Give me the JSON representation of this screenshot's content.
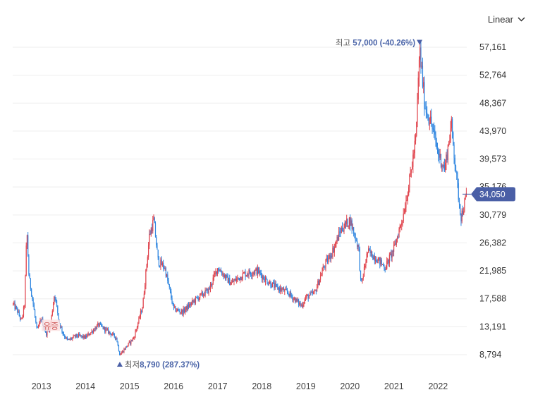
{
  "scale_toggle": {
    "label": "Linear",
    "icon": "chevron-down-icon"
  },
  "colors": {
    "up": "#e0444d",
    "down": "#2f86e0",
    "accent": "#4a5fa6",
    "grid": "#eeeeee"
  },
  "chart_data": {
    "type": "candlestick",
    "title": "",
    "xlabel": "",
    "ylabel": "",
    "ylim": [
      8794,
      57161
    ],
    "y_ticks": [
      "57,161",
      "52,764",
      "48,367",
      "43,970",
      "39,573",
      "35,176",
      "30,779",
      "26,382",
      "21,985",
      "17,588",
      "13,191",
      "8,794"
    ],
    "y_tick_values": [
      57161,
      52764,
      48367,
      43970,
      39573,
      35176,
      30779,
      26382,
      21985,
      17588,
      13191,
      8794
    ],
    "x_ticks": [
      "2013",
      "2014",
      "2015",
      "2016",
      "2017",
      "2018",
      "2019",
      "2020",
      "2021",
      "2022"
    ],
    "x_tick_values": [
      2013.0,
      2014.0,
      2015.0,
      2016.0,
      2017.0,
      2018.0,
      2019.0,
      2020.0,
      2021.0,
      2022.0
    ],
    "xlim": [
      2012.35,
      2022.65
    ],
    "grid": true,
    "current_price": {
      "label": "34,050",
      "value": 34050
    },
    "high_annotation": {
      "label": "최고",
      "value_text": "57,000 (-40.26%)",
      "x": 2021.58,
      "value": 57000
    },
    "low_annotation": {
      "label": "최저",
      "value_text": "8,790 (287.37%)",
      "x": 2014.78,
      "value": 8790
    },
    "watermark_text": "유증",
    "watermark_x": 2013.2,
    "watermark_y": 13200,
    "series": [
      {
        "name": "price",
        "x": [
          2012.35,
          2012.45,
          2012.55,
          2012.62,
          2012.67,
          2012.72,
          2012.8,
          2012.9,
          2013.0,
          2013.1,
          2013.2,
          2013.3,
          2013.4,
          2013.5,
          2013.6,
          2013.8,
          2014.0,
          2014.3,
          2014.5,
          2014.7,
          2014.78,
          2014.9,
          2015.1,
          2015.3,
          2015.45,
          2015.55,
          2015.65,
          2015.8,
          2016.0,
          2016.2,
          2016.5,
          2016.8,
          2017.0,
          2017.3,
          2017.6,
          2017.9,
          2018.1,
          2018.3,
          2018.6,
          2018.9,
          2019.0,
          2019.2,
          2019.4,
          2019.6,
          2019.8,
          2020.0,
          2020.2,
          2020.25,
          2020.4,
          2020.6,
          2020.8,
          2021.0,
          2021.2,
          2021.35,
          2021.5,
          2021.58,
          2021.7,
          2021.85,
          2022.0,
          2022.15,
          2022.3,
          2022.45,
          2022.52,
          2022.6,
          2022.65
        ],
        "values": [
          16800,
          15800,
          14000,
          16800,
          28500,
          21000,
          17500,
          12500,
          14500,
          12000,
          13200,
          18500,
          14000,
          12000,
          11000,
          11800,
          11500,
          13500,
          12500,
          11500,
          8790,
          9800,
          11500,
          16500,
          27500,
          30000,
          23500,
          22500,
          16000,
          15500,
          17500,
          19000,
          22500,
          20000,
          21500,
          22000,
          20500,
          19500,
          18500,
          16500,
          17800,
          18500,
          22500,
          25000,
          28500,
          30000,
          25500,
          19500,
          25000,
          24000,
          22500,
          25500,
          30500,
          36000,
          43000,
          57000,
          48000,
          45000,
          40500,
          38000,
          45000,
          34500,
          30500,
          32500,
          34050
        ]
      }
    ]
  }
}
